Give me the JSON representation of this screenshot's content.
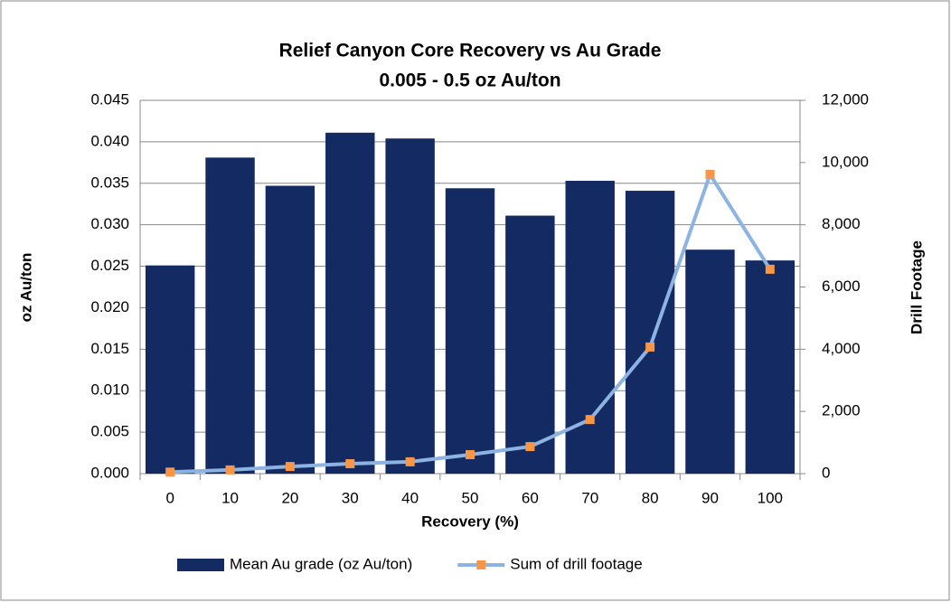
{
  "chart_data": {
    "type": "bar",
    "title": "Relief Canyon Core Recovery vs Au Grade",
    "subtitle": "0.005 - 0.5 oz Au/ton",
    "x_label": "Recovery (%)",
    "y_label": "oz Au/ton",
    "y2_label": "Drill Footage",
    "categories": [
      "0",
      "10",
      "20",
      "30",
      "40",
      "50",
      "60",
      "70",
      "80",
      "90",
      "100"
    ],
    "series": [
      {
        "name": "Mean Au grade (oz Au/ton)",
        "type": "bar",
        "axis": "y",
        "color": "#132a63",
        "values": [
          0.0251,
          0.0381,
          0.0347,
          0.0411,
          0.0404,
          0.0344,
          0.0311,
          0.0353,
          0.0341,
          0.027,
          0.0257
        ]
      },
      {
        "name": "Sum of drill footage",
        "type": "line",
        "axis": "y2",
        "color": "#8db3e2",
        "marker_color": "#f79646",
        "values": [
          50,
          120,
          230,
          320,
          380,
          610,
          870,
          1740,
          4070,
          9620,
          6570
        ]
      }
    ],
    "ylim": [
      0,
      0.045
    ],
    "yticks": [
      {
        "value": 0,
        "label": "0.000"
      },
      0.005,
      {
        "value": 0.01,
        "label": "0.010"
      },
      0.015,
      {
        "value": 0.02,
        "label": "0.020"
      },
      0.025,
      {
        "value": 0.03,
        "label": "0.030"
      },
      0.035,
      {
        "value": 0.04,
        "label": "0.040"
      },
      0.045
    ],
    "y2lim": [
      0,
      12000
    ],
    "y2ticks": [
      0,
      {
        "value": 2000,
        "label": "2,000"
      },
      {
        "value": 4000,
        "label": "4,000"
      },
      {
        "value": 6000,
        "label": "6,000"
      },
      {
        "value": 8000,
        "label": "8,000"
      },
      {
        "value": 10000,
        "label": "10,000"
      },
      {
        "value": 12000,
        "label": "12,000"
      }
    ],
    "grid": true,
    "legend": "bottom"
  }
}
